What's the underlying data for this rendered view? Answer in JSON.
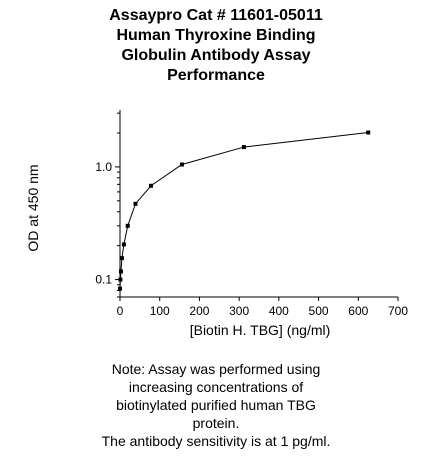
{
  "chart_data": {
    "type": "line",
    "title_lines": [
      "Assaypro Cat # 11601-05011",
      "Human Thyroxine Binding",
      "Globulin Antibody Assay",
      "Performance"
    ],
    "xlabel": "[Biotin H. TBG] (ng/ml)",
    "ylabel": "OD at 450 nm",
    "x_scale": "linear",
    "y_scale": "log",
    "xlim": [
      0,
      700
    ],
    "ylim": [
      0.07,
      3.2
    ],
    "x_ticks": [
      0,
      100,
      200,
      300,
      400,
      500,
      600,
      700
    ],
    "x_tick_labels": [
      "0",
      "100",
      "200",
      "300",
      "400",
      "500",
      "600",
      "700"
    ],
    "y_ticks": [
      0.1,
      1.0
    ],
    "y_tick_labels": [
      "0.1",
      "1.0"
    ],
    "grid": false,
    "legend": "none",
    "series": [
      {
        "x": [
          0,
          1,
          2.4,
          4.9,
          9.8,
          19.5,
          39,
          78,
          156,
          312,
          625
        ],
        "y": [
          0.083,
          0.1,
          0.118,
          0.155,
          0.205,
          0.3,
          0.47,
          0.68,
          1.05,
          1.5,
          2.02
        ],
        "marker": "square",
        "color": "#000000"
      }
    ]
  },
  "note_lines": [
    "Note: Assay was performed using",
    "increasing concentrations of",
    "biotinylated purified human TBG",
    "protein.",
    "The antibody sensitivity is at 1 pg/ml."
  ]
}
